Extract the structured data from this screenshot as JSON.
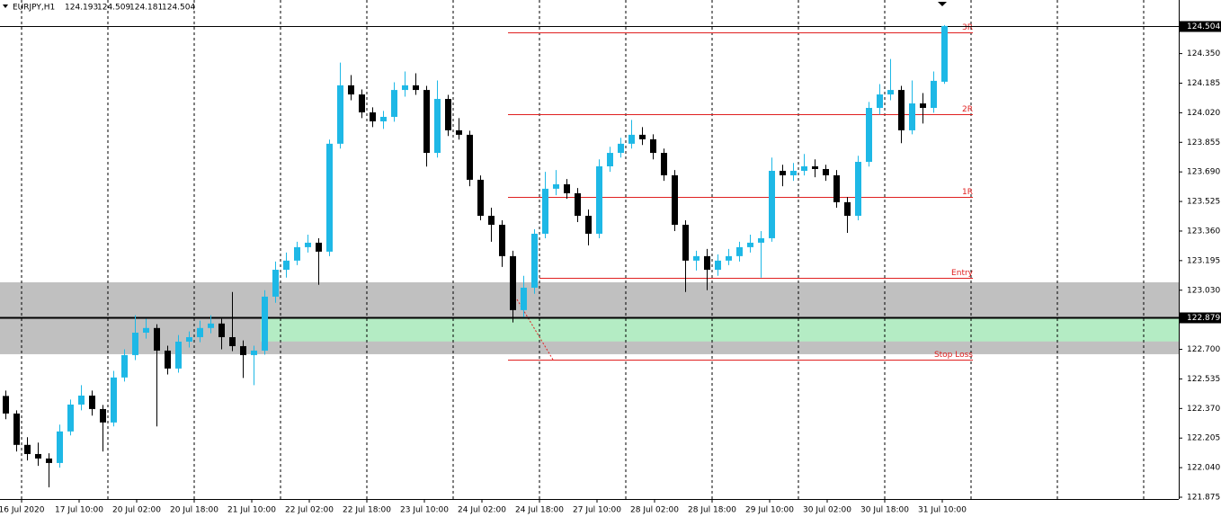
{
  "chart_data": {
    "type": "candlestick",
    "symbol": "EURJPY,H1",
    "bull_color": "#1eb8e6",
    "bear_color": "#000000",
    "ylim": [
      121.865,
      124.649
    ],
    "yticks": [
      {
        "value": 124.35,
        "label": "124.350"
      },
      124.185,
      {
        "value": 124.02,
        "label": "124.020"
      },
      123.855,
      {
        "value": 123.69,
        "label": "123.690"
      },
      123.525,
      {
        "value": 123.36,
        "label": "123.360"
      },
      123.195,
      {
        "value": 123.03,
        "label": "123.030"
      },
      {
        "value": 122.7,
        "label": "122.700"
      },
      122.535,
      {
        "value": 122.37,
        "label": "122.370"
      },
      122.205,
      {
        "value": 122.04,
        "label": "122.040"
      },
      121.875
    ],
    "x_labels": [
      "16 Jul 2020",
      "17 Jul 10:00",
      "20 Jul 02:00",
      "20 Jul 18:00",
      "21 Jul 10:00",
      "22 Jul 02:00",
      "22 Jul 18:00",
      "23 Jul 10:00",
      "24 Jul 02:00",
      "24 Jul 18:00",
      "27 Jul 10:00",
      "28 Jul 02:00",
      "28 Jul 18:00",
      "29 Jul 10:00",
      "30 Jul 02:00",
      "30 Jul 18:00",
      "31 Jul 10:00"
    ],
    "hline": 122.879,
    "level_color": "#e02020",
    "levels": [
      {
        "label": "3R",
        "value": 124.468
      },
      {
        "label": "2R",
        "value": 124.012
      },
      {
        "label": "1R",
        "value": 123.551
      },
      {
        "label": "Entry",
        "value": 123.099
      },
      {
        "label": "Stop Loss",
        "value": 122.643
      }
    ],
    "zones": [
      {
        "from": 122.673,
        "to": 123.074,
        "color": "#c0c0c0"
      },
      {
        "from": 122.744,
        "to": 122.879,
        "color": "#b4ecc4"
      }
    ],
    "candles": [
      [
        122.44,
        122.47,
        122.31,
        122.342
      ],
      [
        122.342,
        122.36,
        122.13,
        122.167
      ],
      [
        122.167,
        122.21,
        122.08,
        122.116
      ],
      [
        122.116,
        122.18,
        122.05,
        122.091
      ],
      [
        122.091,
        122.12,
        121.93,
        122.066
      ],
      [
        122.066,
        122.28,
        122.04,
        122.242
      ],
      [
        122.242,
        122.42,
        122.22,
        122.392
      ],
      [
        122.392,
        122.5,
        122.36,
        122.442
      ],
      [
        122.442,
        122.47,
        122.33,
        122.367
      ],
      [
        122.367,
        122.39,
        122.13,
        122.292
      ],
      [
        122.292,
        122.58,
        122.27,
        122.543
      ],
      [
        122.543,
        122.7,
        122.52,
        122.668
      ],
      [
        122.668,
        122.89,
        122.64,
        122.793
      ],
      [
        122.793,
        122.87,
        122.76,
        122.819
      ],
      [
        122.819,
        122.84,
        122.27,
        122.693
      ],
      [
        122.693,
        122.72,
        122.56,
        122.593
      ],
      [
        122.593,
        122.78,
        122.57,
        122.743
      ],
      [
        122.743,
        122.8,
        122.71,
        122.768
      ],
      [
        122.768,
        122.86,
        122.74,
        122.819
      ],
      [
        122.819,
        122.89,
        122.79,
        122.844
      ],
      [
        122.844,
        122.87,
        122.7,
        122.768
      ],
      [
        122.768,
        123.02,
        122.69,
        122.718
      ],
      [
        122.718,
        122.75,
        122.54,
        122.668
      ],
      [
        122.668,
        122.72,
        122.5,
        122.693
      ],
      [
        122.693,
        123.03,
        122.67,
        122.994
      ],
      [
        122.994,
        123.19,
        122.96,
        123.144
      ],
      [
        123.144,
        123.24,
        123.1,
        123.195
      ],
      [
        123.195,
        123.3,
        123.17,
        123.27
      ],
      [
        123.27,
        123.34,
        123.24,
        123.295
      ],
      [
        123.295,
        123.32,
        123.06,
        123.245
      ],
      [
        123.245,
        123.87,
        123.22,
        123.847
      ],
      [
        123.847,
        124.3,
        123.82,
        124.173
      ],
      [
        124.173,
        124.23,
        124.09,
        124.122
      ],
      [
        124.122,
        124.15,
        123.99,
        124.022
      ],
      [
        124.022,
        124.05,
        123.94,
        123.972
      ],
      [
        123.972,
        124.03,
        123.93,
        123.997
      ],
      [
        123.997,
        124.19,
        123.97,
        124.147
      ],
      [
        124.147,
        124.25,
        124.11,
        124.173
      ],
      [
        124.173,
        124.24,
        124.12,
        124.147
      ],
      [
        124.147,
        124.17,
        123.72,
        123.796
      ],
      [
        123.796,
        124.2,
        123.77,
        124.097
      ],
      [
        124.097,
        124.12,
        123.89,
        123.922
      ],
      [
        123.922,
        123.99,
        123.87,
        123.897
      ],
      [
        123.897,
        123.92,
        123.61,
        123.646
      ],
      [
        123.646,
        123.67,
        123.42,
        123.445
      ],
      [
        123.445,
        123.49,
        123.3,
        123.395
      ],
      [
        123.395,
        123.42,
        123.16,
        123.22
      ],
      [
        123.22,
        123.25,
        122.85,
        122.919
      ],
      [
        122.919,
        123.11,
        122.88,
        123.044
      ],
      [
        123.044,
        123.37,
        123.01,
        123.345
      ],
      [
        123.345,
        123.69,
        123.32,
        123.596
      ],
      [
        123.596,
        123.7,
        123.56,
        123.621
      ],
      [
        123.621,
        123.65,
        123.54,
        123.571
      ],
      [
        123.571,
        123.6,
        123.41,
        123.445
      ],
      [
        123.445,
        123.48,
        123.28,
        123.345
      ],
      [
        123.345,
        123.76,
        123.32,
        123.721
      ],
      [
        123.721,
        123.83,
        123.69,
        123.796
      ],
      [
        123.796,
        123.88,
        123.77,
        123.847
      ],
      [
        123.847,
        123.98,
        123.82,
        123.897
      ],
      [
        123.897,
        123.94,
        123.84,
        123.872
      ],
      [
        123.872,
        123.9,
        123.76,
        123.796
      ],
      [
        123.796,
        123.82,
        123.64,
        123.671
      ],
      [
        123.671,
        123.7,
        123.36,
        123.395
      ],
      [
        123.395,
        123.42,
        123.02,
        123.195
      ],
      [
        123.195,
        123.25,
        123.14,
        123.22
      ],
      [
        123.22,
        123.26,
        123.03,
        123.144
      ],
      [
        123.144,
        123.23,
        123.11,
        123.195
      ],
      [
        123.195,
        123.26,
        123.17,
        123.22
      ],
      [
        123.22,
        123.3,
        123.19,
        123.27
      ],
      [
        123.27,
        123.34,
        123.24,
        123.295
      ],
      [
        123.295,
        123.36,
        123.1,
        123.32
      ],
      [
        123.32,
        123.77,
        123.3,
        123.696
      ],
      [
        123.696,
        123.73,
        123.61,
        123.671
      ],
      [
        123.671,
        123.74,
        123.64,
        123.696
      ],
      [
        123.696,
        123.79,
        123.67,
        123.721
      ],
      [
        123.721,
        123.76,
        123.66,
        123.706
      ],
      [
        123.706,
        123.73,
        123.64,
        123.671
      ],
      [
        123.671,
        123.7,
        123.49,
        123.521
      ],
      [
        123.521,
        123.55,
        123.35,
        123.445
      ],
      [
        123.445,
        123.78,
        123.42,
        123.746
      ],
      [
        123.746,
        124.08,
        123.72,
        124.047
      ],
      [
        124.047,
        124.18,
        124.01,
        124.122
      ],
      [
        124.122,
        124.32,
        124.09,
        124.147
      ],
      [
        124.147,
        124.17,
        123.85,
        123.922
      ],
      [
        123.922,
        124.2,
        123.9,
        124.072
      ],
      [
        124.072,
        124.13,
        123.96,
        124.047
      ],
      [
        124.047,
        124.25,
        124.02,
        124.198
      ],
      [
        124.193,
        124.509,
        124.181,
        124.504
      ]
    ]
  }
}
